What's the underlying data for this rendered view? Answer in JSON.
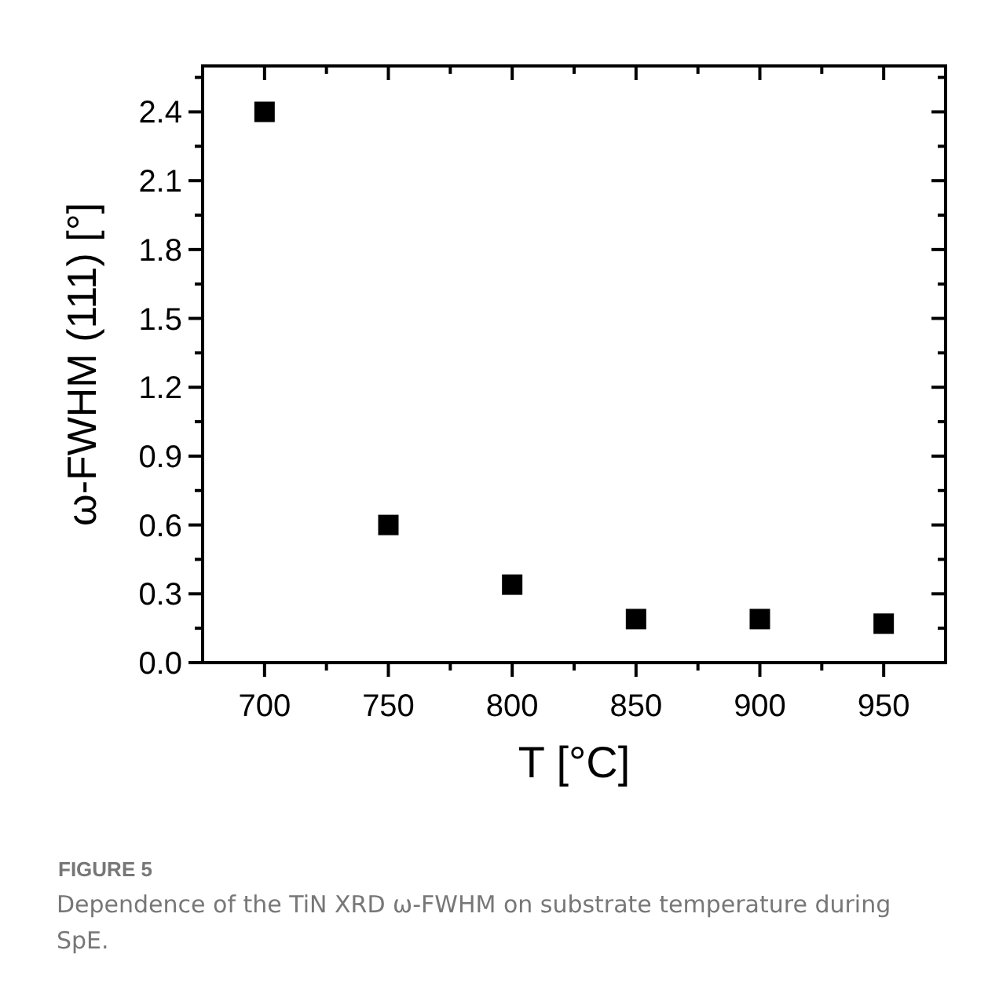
{
  "chart_data": {
    "type": "scatter",
    "xlabel": "T [°C]",
    "ylabel": "ω-FWHM (111) [°]",
    "x": [
      700,
      750,
      800,
      850,
      900,
      950
    ],
    "series": [
      {
        "color": "#000000",
        "values": [
          2.4,
          0.6,
          0.34,
          0.19,
          0.19,
          0.17
        ]
      }
    ],
    "marker": "square",
    "xlim": [
      675,
      975
    ],
    "ylim": [
      0,
      2.6
    ],
    "xticks": [
      700,
      {
        "value": 725,
        "label": null
      },
      750,
      {
        "value": 775,
        "label": null
      },
      800,
      {
        "value": 825,
        "label": null
      },
      850,
      {
        "value": 875,
        "label": null
      },
      900,
      {
        "value": 925,
        "label": null
      },
      950
    ],
    "yticks": [
      "0.0",
      {
        "value": 0.15,
        "label": null
      },
      {
        "value": 0.3,
        "label": "0.3"
      },
      {
        "value": 0.45,
        "label": null
      },
      {
        "value": 0.6,
        "label": "0.6"
      },
      {
        "value": 0.75,
        "label": null
      },
      {
        "value": 0.9,
        "label": "0.9"
      },
      {
        "value": 1.05,
        "label": null
      },
      {
        "value": 1.2,
        "label": "1.2"
      },
      {
        "value": 1.35,
        "label": null
      },
      {
        "value": 1.5,
        "label": "1.5"
      },
      {
        "value": 1.65,
        "label": null
      },
      {
        "value": 1.8,
        "label": "1.8"
      },
      {
        "value": 1.95,
        "label": null
      },
      {
        "value": 2.1,
        "label": "2.1"
      },
      {
        "value": 2.25,
        "label": null
      },
      {
        "value": 2.4,
        "label": "2.4"
      },
      {
        "value": 2.55,
        "label": null
      }
    ],
    "annotations": [
      "FIGURE 5",
      "Dependence of the TiN XRD ω-FWHM on substrate temperature during SpE."
    ]
  }
}
